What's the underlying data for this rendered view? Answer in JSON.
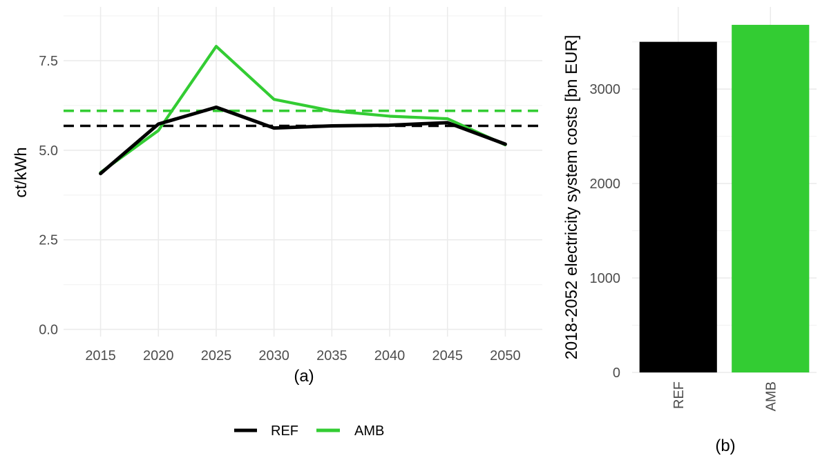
{
  "chart_data": [
    {
      "type": "line",
      "caption": "(a)",
      "xlabel": "",
      "ylabel": "ct/kWh",
      "x": [
        2015,
        2020,
        2025,
        2030,
        2035,
        2040,
        2045,
        2050
      ],
      "x_tick_labels": [
        "2015",
        "2020",
        "2025",
        "2030",
        "2035",
        "2040",
        "2045",
        "2050"
      ],
      "xlim": [
        2011.8,
        2053.2
      ],
      "y_tick_values": [
        0,
        2.5,
        5,
        7.5
      ],
      "y_tick_labels": [
        "0.0",
        "2.5",
        "5.0",
        "7.5"
      ],
      "ylim": [
        -0.2,
        9.0
      ],
      "grid": true,
      "series": [
        {
          "name": "REF",
          "color": "#000000",
          "values": [
            4.35,
            5.73,
            6.2,
            5.62,
            5.68,
            5.7,
            5.77,
            5.17
          ],
          "average": 5.68
        },
        {
          "name": "AMB",
          "color": "#33cc33",
          "values": [
            4.38,
            5.55,
            7.9,
            6.42,
            6.1,
            5.95,
            5.88,
            5.15
          ],
          "average": 6.1
        }
      ],
      "reference_lines": {
        "style": "dashed",
        "note_series": [
          "REF",
          "AMB"
        ]
      }
    },
    {
      "type": "bar",
      "caption": "(b)",
      "xlabel": "",
      "ylabel": "2018-2052 electricity system costs [bn EUR]",
      "categories": [
        "REF",
        "AMB"
      ],
      "values": [
        3500,
        3680
      ],
      "colors": [
        "#000000",
        "#33cc33"
      ],
      "y_tick_values": [
        0,
        1000,
        2000,
        3000
      ],
      "y_tick_labels": [
        "0",
        "1000",
        "2000",
        "3000"
      ],
      "ylim": [
        0,
        3870
      ],
      "grid": true
    }
  ],
  "legend": {
    "position": "bottom",
    "entries": [
      {
        "label": "REF",
        "color": "#000000"
      },
      {
        "label": "AMB",
        "color": "#33cc33"
      }
    ]
  }
}
